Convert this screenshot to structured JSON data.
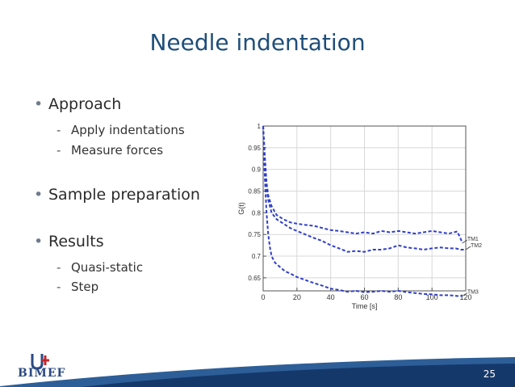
{
  "slide": {
    "title": "Needle indentation",
    "page_number": "25",
    "logo_text": "BIMEF",
    "bullets": [
      {
        "text": "Approach",
        "subs": [
          "Apply indentations",
          "Measure forces"
        ]
      },
      {
        "text": "Sample preparation",
        "subs": []
      },
      {
        "text": "Results",
        "subs": [
          "Quasi-static",
          "Step"
        ]
      }
    ]
  },
  "chart_data": {
    "type": "line",
    "title": "",
    "xlabel": "Time [s]",
    "ylabel": "G(t)",
    "xlim": [
      0,
      120
    ],
    "ylim": [
      0.62,
      1.0
    ],
    "xticks": [
      0,
      20,
      40,
      60,
      80,
      100,
      120
    ],
    "yticks": [
      0.65,
      0.7,
      0.75,
      0.8,
      0.85,
      0.9,
      0.95,
      1
    ],
    "ytick_labels": [
      "0.65",
      "0.7",
      "0.75",
      "0.8",
      "0.85",
      "0.9",
      "0.95",
      "1"
    ],
    "grid": true,
    "line_color": "#2f3fc8",
    "series": [
      {
        "name": "TM1",
        "x": [
          0,
          1,
          2,
          3,
          5,
          8,
          12,
          16,
          20,
          25,
          30,
          35,
          40,
          45,
          50,
          55,
          60,
          65,
          70,
          75,
          80,
          85,
          90,
          95,
          100,
          105,
          110,
          113,
          115,
          117,
          118
        ],
        "y": [
          1.0,
          0.93,
          0.87,
          0.84,
          0.815,
          0.795,
          0.785,
          0.778,
          0.775,
          0.772,
          0.77,
          0.765,
          0.76,
          0.758,
          0.755,
          0.752,
          0.755,
          0.752,
          0.758,
          0.755,
          0.758,
          0.755,
          0.752,
          0.755,
          0.758,
          0.755,
          0.752,
          0.755,
          0.757,
          0.74,
          0.73
        ]
      },
      {
        "name": "TM2",
        "x": [
          0,
          1,
          2,
          3,
          5,
          8,
          12,
          16,
          20,
          25,
          30,
          35,
          40,
          45,
          50,
          55,
          60,
          65,
          70,
          75,
          80,
          85,
          90,
          95,
          100,
          105,
          110,
          114,
          117,
          120
        ],
        "y": [
          1.0,
          0.92,
          0.86,
          0.83,
          0.8,
          0.785,
          0.775,
          0.765,
          0.758,
          0.75,
          0.742,
          0.735,
          0.725,
          0.718,
          0.71,
          0.712,
          0.71,
          0.715,
          0.715,
          0.718,
          0.725,
          0.72,
          0.718,
          0.715,
          0.718,
          0.72,
          0.718,
          0.718,
          0.715,
          0.715
        ]
      },
      {
        "name": "TM3",
        "x": [
          0,
          1,
          2,
          3,
          4,
          5,
          7,
          10,
          13,
          16,
          20,
          25,
          30,
          35,
          40,
          45,
          50,
          55,
          60,
          65,
          70,
          75,
          80,
          85,
          90,
          95,
          100,
          105,
          110,
          115,
          118
        ],
        "y": [
          1.0,
          0.88,
          0.8,
          0.75,
          0.72,
          0.7,
          0.685,
          0.675,
          0.665,
          0.66,
          0.652,
          0.645,
          0.638,
          0.632,
          0.625,
          0.622,
          0.618,
          0.62,
          0.617,
          0.618,
          0.62,
          0.618,
          0.62,
          0.617,
          0.615,
          0.613,
          0.612,
          0.61,
          0.61,
          0.608,
          0.608
        ]
      }
    ]
  }
}
